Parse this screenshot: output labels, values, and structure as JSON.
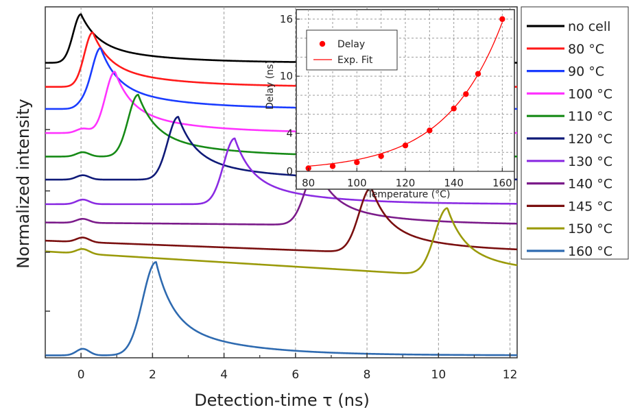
{
  "chart_data": [
    {
      "type": "line",
      "title": "",
      "xlabel": "Detection-time τ (ns)",
      "ylabel": "Normalized intensity",
      "xlim": [
        -1,
        12.2
      ],
      "ylim": [
        -0.05,
        7.1
      ],
      "x_ticks": [
        0,
        2,
        4,
        6,
        8,
        10,
        12
      ],
      "x_tick_labels": [
        "0",
        "2",
        "4",
        "6",
        "8",
        "10",
        "12"
      ],
      "grid": "vertical dashed",
      "legend_position": "right, outside plot",
      "series": [
        {
          "name": "no cell",
          "color": "#000000",
          "baseline": 5.96,
          "peak_x": 0.0,
          "peak_y": 6.95,
          "tail": 0.0
        },
        {
          "name": "80  °C",
          "color": "#ff1a1a",
          "baseline": 5.47,
          "peak_x": 0.33,
          "peak_y": 6.58,
          "tail": 0.0
        },
        {
          "name": "90  °C",
          "color": "#1a3cff",
          "baseline": 5.02,
          "peak_x": 0.55,
          "peak_y": 6.26,
          "tail": 0.0
        },
        {
          "name": "100 °C",
          "color": "#ff33ff",
          "baseline": 4.53,
          "peak_x": 0.95,
          "peak_y": 5.78,
          "tail": 0.0
        },
        {
          "name": "110 °C",
          "color": "#168a16",
          "baseline": 4.05,
          "peak_x": 1.6,
          "peak_y": 5.31,
          "tail": 0.0
        },
        {
          "name": "120 °C",
          "color": "#0f1a78",
          "baseline": 3.58,
          "peak_x": 2.72,
          "peak_y": 4.86,
          "tail": 0.0
        },
        {
          "name": "130 °C",
          "color": "#8a2be2",
          "baseline": 3.08,
          "peak_x": 4.3,
          "peak_y": 4.42,
          "tail": 0.0
        },
        {
          "name": "140 °C",
          "color": "#7b1b8a",
          "baseline": 2.66,
          "peak_x": 6.6,
          "peak_y": 3.82,
          "tail": 0.05
        },
        {
          "name": "145 °C",
          "color": "#7a0f0f",
          "baseline": 2.1,
          "peak_x": 8.12,
          "peak_y": 3.42,
          "tail": 0.25
        },
        {
          "name": "150 °C",
          "color": "#9a9a0a",
          "baseline": 1.64,
          "peak_x": 10.25,
          "peak_y": 3.0,
          "tail": 0.5
        },
        {
          "name": "160 °C",
          "color": "#2e6ab0",
          "baseline": 0.0,
          "peak_x": 2.1,
          "peak_y": 1.9,
          "tail": 0.0
        }
      ]
    },
    {
      "type": "scatter",
      "title": "",
      "xlabel": "Temperature (°C)",
      "ylabel": "Delay (ns)",
      "xlim": [
        75,
        165
      ],
      "ylim": [
        0,
        17
      ],
      "x_ticks": [
        80,
        100,
        120,
        140,
        160
      ],
      "y_ticks": [
        0,
        4,
        10,
        16
      ],
      "grid": "dashed both",
      "legend_position": "top-left",
      "series": [
        {
          "name": "Delay",
          "color": "#ff0000",
          "x": [
            80,
            90,
            100,
            110,
            120,
            130,
            140,
            145,
            150,
            160
          ],
          "y": [
            0.33,
            0.55,
            0.95,
            1.6,
            2.72,
            4.3,
            6.6,
            8.12,
            10.25,
            16.0
          ]
        },
        {
          "name": "Exp. Fit",
          "color": "#ff0000",
          "fit_a": 0.0158,
          "fit_b": 0.0431,
          "x_range": [
            80,
            160
          ]
        }
      ]
    }
  ]
}
